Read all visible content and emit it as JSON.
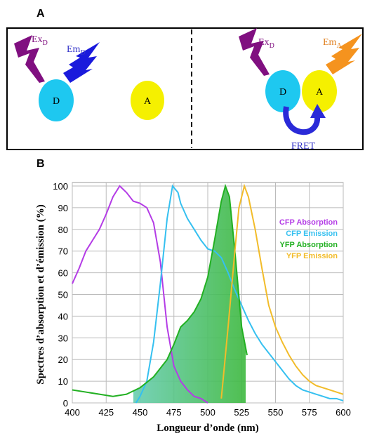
{
  "panel_a": {
    "label": "A",
    "left": {
      "excitation": "Ex",
      "excitation_sub": "D",
      "emission": "Em",
      "emission_sub": "D",
      "donor": "D",
      "acceptor": "A"
    },
    "right": {
      "excitation": "Ex",
      "excitation_sub": "D",
      "emission": "Em",
      "emission_sub": "A",
      "donor": "D",
      "acceptor": "A",
      "transfer": "FRET"
    }
  },
  "panel_b": {
    "label": "B"
  },
  "chart_data": {
    "type": "line",
    "xlabel": "Longueur d’onde (nm)",
    "ylabel": "Spectres d’absorption et d’émission (%)",
    "xlim": [
      400,
      600
    ],
    "ylim": [
      0,
      100
    ],
    "xticks": [
      400,
      425,
      450,
      475,
      500,
      525,
      550,
      575,
      600
    ],
    "yticks": [
      0,
      10,
      20,
      30,
      40,
      50,
      60,
      70,
      80,
      90,
      100
    ],
    "grid": true,
    "legend": "upper right",
    "series": [
      {
        "name": "CFP Absorption",
        "color": "#b43ce6",
        "x": [
          400,
          405,
          410,
          415,
          420,
          425,
          430,
          435,
          440,
          445,
          450,
          455,
          460,
          465,
          470,
          475,
          480,
          485,
          490,
          495,
          500
        ],
        "values": [
          55,
          62,
          70,
          75,
          80,
          87,
          95,
          100,
          97,
          93,
          92,
          90,
          83,
          65,
          35,
          17,
          10,
          6,
          3,
          2,
          0
        ]
      },
      {
        "name": "CFP Emission",
        "color": "#35c0f0",
        "x": [
          447,
          450,
          455,
          460,
          465,
          470,
          474,
          478,
          480,
          485,
          490,
          495,
          500,
          505,
          510,
          515,
          520,
          525,
          530,
          535,
          540,
          545,
          550,
          555,
          560,
          565,
          570,
          575,
          580,
          585,
          590,
          595,
          600
        ],
        "values": [
          0,
          3,
          10,
          28,
          55,
          85,
          100,
          97,
          92,
          85,
          80,
          75,
          71,
          70,
          67,
          60,
          52,
          45,
          38,
          32,
          27,
          23,
          19,
          15,
          11,
          8,
          6,
          5,
          4,
          3,
          2,
          2,
          1
        ]
      },
      {
        "name": "YFP Absorption",
        "color": "#22b022",
        "x": [
          400,
          410,
          420,
          430,
          440,
          450,
          460,
          470,
          475,
          480,
          485,
          490,
          495,
          500,
          505,
          510,
          513,
          516,
          520,
          525,
          529
        ],
        "values": [
          6,
          5,
          4,
          3,
          4,
          7,
          12,
          20,
          27,
          35,
          38,
          42,
          48,
          58,
          75,
          93,
          100,
          95,
          70,
          35,
          22
        ]
      },
      {
        "name": "YFP Emission",
        "color": "#f2bc2a",
        "x": [
          510,
          515,
          520,
          523,
          527,
          530,
          535,
          540,
          545,
          550,
          555,
          560,
          565,
          570,
          575,
          580,
          590,
          600
        ],
        "values": [
          2,
          35,
          70,
          90,
          100,
          95,
          80,
          62,
          45,
          35,
          28,
          22,
          17,
          13,
          10,
          8,
          6,
          4
        ]
      }
    ]
  }
}
